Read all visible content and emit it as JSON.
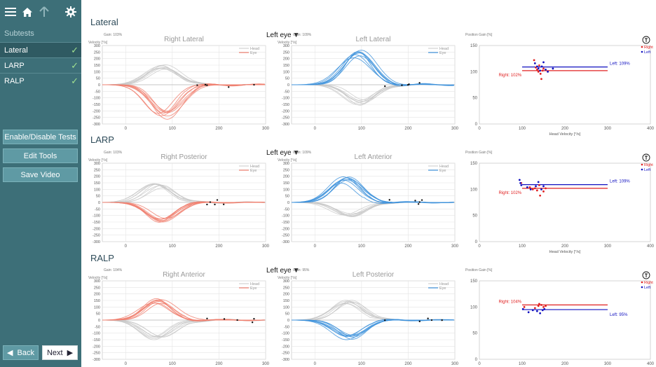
{
  "sidebar": {
    "subtests_label": "Subtests",
    "items": [
      {
        "label": "Lateral",
        "done": true
      },
      {
        "label": "LARP",
        "done": true
      },
      {
        "label": "RALP",
        "done": true
      }
    ],
    "buttons": {
      "enable": "Enable/Disable Tests",
      "edit": "Edit Tools",
      "save": "Save Video"
    },
    "back_label": "Back",
    "next_label": "Next"
  },
  "colors": {
    "sidebar": "#3d6f78",
    "head": "#c8c8c8",
    "right_eye": "#f08070",
    "left_eye": "#3f93dc",
    "right_gain": "#e02020",
    "left_gain": "#1010c0"
  },
  "sections": [
    {
      "title": "Lateral",
      "eye_select": "Left eye",
      "velocity_label": "Velocity [°/s]",
      "position_gain_label": "Position Gain [%]",
      "head_velocity_label": "Head Velocity [°/s]",
      "legend": {
        "head": "Head",
        "eye": "Eye",
        "right": "Right",
        "left": "Left"
      },
      "right_chart": {
        "title": "Right Lateral",
        "gain": "Gain: 103%"
      },
      "left_chart": {
        "title": "Left Lateral",
        "gain": "Gain: 109%"
      },
      "gain_chart": {
        "right_label": "Right: 102%",
        "left_label": "Left: 109%"
      }
    },
    {
      "title": "LARP",
      "eye_select": "Left eye",
      "velocity_label": "Velocity [°/s]",
      "position_gain_label": "Position Gain [%]",
      "head_velocity_label": "Head Velocity [°/s]",
      "legend": {
        "head": "Head",
        "eye": "Eye",
        "right": "Right",
        "left": "Left"
      },
      "right_chart": {
        "title": "Right Posterior",
        "gain": "Gain: 103%"
      },
      "left_chart": {
        "title": "Left Anterior",
        "gain": "Gain: 109%"
      },
      "gain_chart": {
        "right_label": "Right: 102%",
        "left_label": "Left: 109%"
      }
    },
    {
      "title": "RALP",
      "eye_select": "Left eye",
      "velocity_label": "Velocity [°/s]",
      "position_gain_label": "Position Gain [%]",
      "head_velocity_label": "Head Velocity [°/s]",
      "legend": {
        "head": "Head",
        "eye": "Eye",
        "right": "Right",
        "left": "Left"
      },
      "right_chart": {
        "title": "Right Anterior",
        "gain": "Gain: 104%"
      },
      "left_chart": {
        "title": "Left Posterior",
        "gain": "Gain: 95%"
      },
      "gain_chart": {
        "right_label": "Right: 104%",
        "left_label": "Left: 95%"
      }
    }
  ],
  "chart_data": [
    {
      "type": "line",
      "panel": "Lateral / Right Lateral",
      "title": "Right Lateral",
      "ylabel": "Velocity [°/s]",
      "xlim": [
        -50,
        300
      ],
      "ylim": [
        -300,
        300
      ],
      "x_ticks": [
        0,
        100,
        200,
        300
      ],
      "y_ticks": [
        -300,
        -250,
        -200,
        -150,
        -100,
        -50,
        0,
        50,
        100,
        150,
        200,
        250,
        300
      ],
      "series": [
        {
          "name": "Head",
          "peak": 140,
          "peak_x": 80
        },
        {
          "name": "Eye",
          "peak": -240,
          "peak_x": 80
        }
      ]
    },
    {
      "type": "line",
      "panel": "Lateral / Left Lateral",
      "title": "Left Lateral",
      "ylabel": "Velocity [°/s]",
      "xlim": [
        -50,
        300
      ],
      "ylim": [
        -300,
        300
      ],
      "x_ticks": [
        0,
        100,
        200,
        300
      ],
      "y_ticks": [
        -300,
        -250,
        -200,
        -150,
        -100,
        -50,
        0,
        50,
        100,
        150,
        200,
        250,
        300
      ],
      "series": [
        {
          "name": "Head",
          "peak": -140,
          "peak_x": 100
        },
        {
          "name": "Eye",
          "peak": 240,
          "peak_x": 90
        }
      ]
    },
    {
      "type": "scatter",
      "panel": "Lateral / Position Gain",
      "xlabel": "Head Velocity [°/s]",
      "ylabel": "Position Gain [%]",
      "xlim": [
        0,
        400
      ],
      "ylim": [
        0,
        150
      ],
      "x_ticks": [
        0,
        100,
        200,
        300,
        400
      ],
      "y_ticks": [
        0,
        50,
        100,
        150
      ],
      "right_gain": 102,
      "left_gain": 109,
      "series": [
        {
          "name": "Right",
          "points": [
            [
              128,
              122
            ],
            [
              132,
              108
            ],
            [
              135,
              104
            ],
            [
              138,
              100
            ],
            [
              140,
              112
            ],
            [
              143,
              96
            ],
            [
              145,
              86
            ],
            [
              148,
              102
            ],
            [
              150,
              106
            ]
          ]
        },
        {
          "name": "Left",
          "points": [
            [
              130,
              116
            ],
            [
              135,
              110
            ],
            [
              138,
              106
            ],
            [
              142,
              102
            ],
            [
              146,
              110
            ],
            [
              150,
              118
            ],
            [
              155,
              104
            ],
            [
              160,
              100
            ],
            [
              172,
              106
            ]
          ]
        }
      ]
    },
    {
      "type": "line",
      "panel": "LARP / Right Posterior",
      "title": "Right Posterior",
      "ylabel": "Velocity [°/s]",
      "xlim": [
        -50,
        300
      ],
      "ylim": [
        -300,
        300
      ],
      "x_ticks": [
        0,
        100,
        200,
        300
      ],
      "y_ticks": [
        -300,
        -250,
        -200,
        -150,
        -100,
        -50,
        0,
        50,
        100,
        150,
        200,
        250,
        300
      ],
      "series": [
        {
          "name": "Head",
          "peak": 130,
          "peak_x": 70
        },
        {
          "name": "Eye",
          "peak": -140,
          "peak_x": 80
        }
      ]
    },
    {
      "type": "line",
      "panel": "LARP / Left Anterior",
      "title": "Left Anterior",
      "ylabel": "Velocity [°/s]",
      "xlim": [
        -50,
        300
      ],
      "ylim": [
        -300,
        300
      ],
      "x_ticks": [
        0,
        100,
        200,
        300
      ],
      "y_ticks": [
        -300,
        -250,
        -200,
        -150,
        -100,
        -50,
        0,
        50,
        100,
        150,
        200,
        250,
        300
      ],
      "series": [
        {
          "name": "Head",
          "peak": -100,
          "peak_x": 70
        },
        {
          "name": "Eye",
          "peak": 180,
          "peak_x": 65
        }
      ]
    },
    {
      "type": "scatter",
      "panel": "LARP / Position Gain",
      "xlabel": "Head Velocity [°/s]",
      "ylabel": "Position Gain [%]",
      "xlim": [
        0,
        400
      ],
      "ylim": [
        0,
        150
      ],
      "x_ticks": [
        0,
        100,
        200,
        300,
        400
      ],
      "y_ticks": [
        0,
        50,
        100,
        150
      ],
      "right_gain": 102,
      "left_gain": 109,
      "series": [
        {
          "name": "Right",
          "points": [
            [
              98,
              112
            ],
            [
              118,
              104
            ],
            [
              125,
              100
            ],
            [
              130,
              102
            ],
            [
              135,
              98
            ],
            [
              140,
              108
            ],
            [
              142,
              88
            ],
            [
              150,
              96
            ],
            [
              155,
              102
            ]
          ]
        },
        {
          "name": "Left",
          "points": [
            [
              94,
              118
            ],
            [
              96,
              112
            ],
            [
              98,
              108
            ],
            [
              112,
              104
            ],
            [
              120,
              100
            ],
            [
              132,
              106
            ],
            [
              138,
              114
            ],
            [
              145,
              100
            ],
            [
              150,
              106
            ]
          ]
        }
      ]
    },
    {
      "type": "line",
      "panel": "RALP / Right Anterior",
      "title": "Right Anterior",
      "ylabel": "Velocity [°/s]",
      "xlim": [
        -50,
        300
      ],
      "ylim": [
        -300,
        300
      ],
      "x_ticks": [
        0,
        100,
        200,
        300
      ],
      "y_ticks": [
        -300,
        -250,
        -200,
        -150,
        -100,
        -50,
        0,
        50,
        100,
        150,
        200,
        250,
        300
      ],
      "series": [
        {
          "name": "Head",
          "peak": -140,
          "peak_x": 70
        },
        {
          "name": "Eye",
          "peak": 155,
          "peak_x": 70
        }
      ]
    },
    {
      "type": "line",
      "panel": "RALP / Left Posterior",
      "title": "Left Posterior",
      "ylabel": "Velocity [°/s]",
      "xlim": [
        -50,
        300
      ],
      "ylim": [
        -300,
        300
      ],
      "x_ticks": [
        0,
        100,
        200,
        300
      ],
      "y_ticks": [
        -300,
        -250,
        -200,
        -150,
        -100,
        -50,
        0,
        50,
        100,
        150,
        200,
        250,
        300
      ],
      "series": [
        {
          "name": "Head",
          "peak": 140,
          "peak_x": 70
        },
        {
          "name": "Eye",
          "peak": -135,
          "peak_x": 75
        }
      ]
    },
    {
      "type": "scatter",
      "panel": "RALP / Position Gain",
      "xlabel": "Head Velocity [°/s]",
      "ylabel": "Position Gain [%]",
      "xlim": [
        0,
        400
      ],
      "ylim": [
        0,
        150
      ],
      "x_ticks": [
        0,
        100,
        200,
        300,
        400
      ],
      "y_ticks": [
        0,
        50,
        100,
        150
      ],
      "right_gain": 104,
      "left_gain": 95,
      "series": [
        {
          "name": "Right",
          "points": [
            [
              105,
              100
            ],
            [
              130,
              98
            ],
            [
              138,
              102
            ],
            [
              140,
              106
            ],
            [
              145,
              104
            ],
            [
              150,
              100
            ],
            [
              155,
              102
            ]
          ]
        },
        {
          "name": "Left",
          "points": [
            [
              102,
              96
            ],
            [
              115,
              90
            ],
            [
              125,
              94
            ],
            [
              135,
              92
            ],
            [
              142,
              88
            ],
            [
              148,
              94
            ],
            [
              152,
              96
            ]
          ]
        }
      ]
    }
  ]
}
